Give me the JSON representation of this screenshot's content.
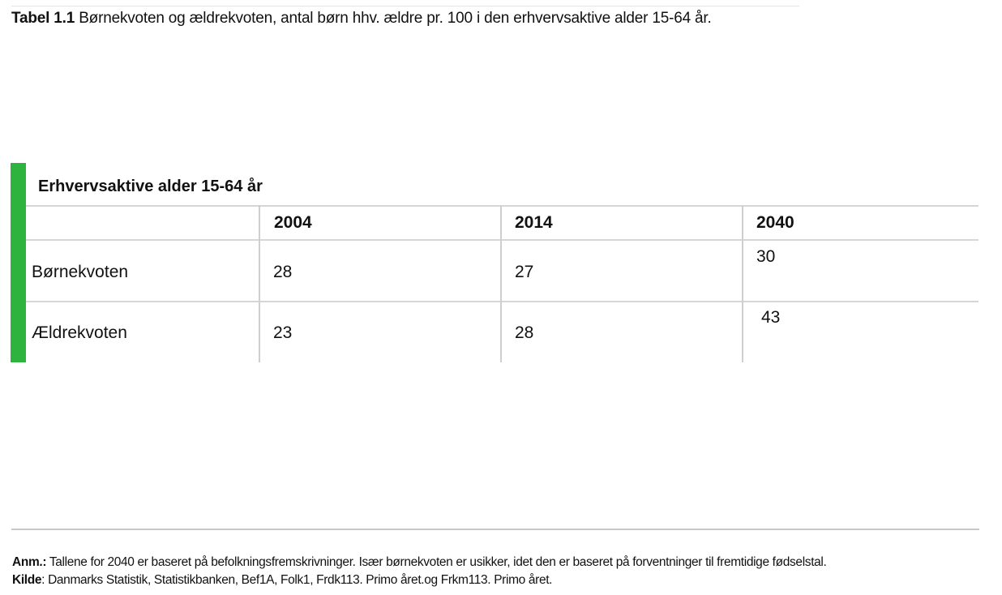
{
  "title": {
    "label": "Tabel 1.1",
    "text": "Børnekvoten og ældrekvoten, antal børn hhv. ældre pr. 100 i den erhvervsaktive alder 15-64 år."
  },
  "table": {
    "caption": "Erhvervsaktive alder 15-64 år",
    "columns": [
      "",
      "2004",
      "2014",
      "2040"
    ],
    "rows": [
      {
        "label": "Børnekvoten",
        "values": [
          "28",
          "27",
          "30"
        ]
      },
      {
        "label": "Ældrekvoten",
        "values": [
          "23",
          "28",
          "43"
        ]
      }
    ]
  },
  "notes": {
    "anm_label": "Anm.:",
    "anm_text": "Tallene for 2040 er baseret på befolkningsfremskrivninger. Især børnekvoten er usikker, idet den er baseret på forventninger til fremtidige fødselstal.",
    "kilde_label": "Kilde",
    "kilde_text": ": Danmarks Statistik, Statistikbanken, Bef1A, Folk1, Frdk113. Primo året.og Frkm113. Primo året."
  },
  "colors": {
    "accent_green": "#2eb33f",
    "rule": "#d6d6d6"
  }
}
